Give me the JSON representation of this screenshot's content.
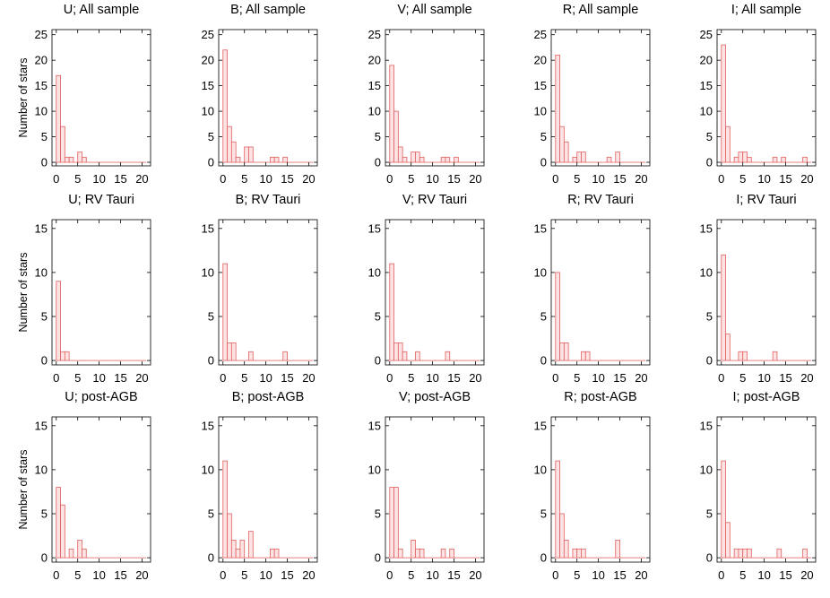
{
  "figure": {
    "ylabel": "Number of stars",
    "bar_fill": "#fde3e3",
    "bar_stroke": "#e06060",
    "axis_color": "#000000"
  },
  "chart_data": [
    {
      "type": "bar",
      "title": "U; All sample",
      "bin_width": 1,
      "x_start": 0,
      "xlim": [
        -1,
        22
      ],
      "ylim": [
        -0.7,
        26
      ],
      "xticks": [
        0,
        5,
        10,
        15,
        20
      ],
      "yticks": [
        0,
        5,
        10,
        15,
        20,
        25
      ],
      "values": [
        17,
        7,
        1,
        1,
        0,
        2,
        1,
        0,
        0,
        0,
        0,
        0,
        0,
        0,
        0,
        0,
        0,
        0,
        0,
        0,
        0
      ]
    },
    {
      "type": "bar",
      "title": "B; All sample",
      "bin_width": 1,
      "x_start": 0,
      "xlim": [
        -1,
        22
      ],
      "ylim": [
        -0.7,
        26
      ],
      "xticks": [
        0,
        5,
        10,
        15,
        20
      ],
      "yticks": [
        0,
        5,
        10,
        15,
        20,
        25
      ],
      "values": [
        22,
        7,
        4,
        1,
        0,
        3,
        3,
        0,
        0,
        0,
        0,
        1,
        1,
        0,
        1,
        0,
        0,
        0,
        0,
        0,
        0
      ]
    },
    {
      "type": "bar",
      "title": "V; All sample",
      "bin_width": 1,
      "x_start": 0,
      "xlim": [
        -1,
        22
      ],
      "ylim": [
        -0.7,
        26
      ],
      "xticks": [
        0,
        5,
        10,
        15,
        20
      ],
      "yticks": [
        0,
        5,
        10,
        15,
        20,
        25
      ],
      "values": [
        19,
        10,
        3,
        1,
        0,
        2,
        2,
        1,
        0,
        0,
        0,
        0,
        1,
        1,
        0,
        1,
        0,
        0,
        0,
        0,
        0
      ]
    },
    {
      "type": "bar",
      "title": "R; All sample",
      "bin_width": 1,
      "x_start": 0,
      "xlim": [
        -1,
        22
      ],
      "ylim": [
        -0.7,
        26
      ],
      "xticks": [
        0,
        5,
        10,
        15,
        20
      ],
      "yticks": [
        0,
        5,
        10,
        15,
        20,
        25
      ],
      "values": [
        21,
        7,
        4,
        0,
        1,
        2,
        2,
        0,
        0,
        0,
        0,
        0,
        1,
        0,
        2,
        0,
        0,
        0,
        0,
        0,
        0
      ]
    },
    {
      "type": "bar",
      "title": "I; All sample",
      "bin_width": 1,
      "x_start": 0,
      "xlim": [
        -1,
        22
      ],
      "ylim": [
        -0.7,
        26
      ],
      "xticks": [
        0,
        5,
        10,
        15,
        20
      ],
      "yticks": [
        0,
        5,
        10,
        15,
        20,
        25
      ],
      "values": [
        23,
        7,
        0,
        1,
        2,
        2,
        1,
        0,
        0,
        0,
        0,
        0,
        1,
        0,
        1,
        0,
        0,
        0,
        0,
        1,
        0
      ]
    },
    {
      "type": "bar",
      "title": "U; RV Tauri",
      "bin_width": 1,
      "x_start": 0,
      "xlim": [
        -1,
        22
      ],
      "ylim": [
        -0.5,
        16
      ],
      "xticks": [
        0,
        5,
        10,
        15,
        20
      ],
      "yticks": [
        0,
        5,
        10,
        15
      ],
      "values": [
        9,
        1,
        1,
        0,
        0,
        0,
        0,
        0,
        0,
        0,
        0,
        0,
        0,
        0,
        0,
        0,
        0,
        0,
        0,
        0,
        0
      ]
    },
    {
      "type": "bar",
      "title": "B; RV Tauri",
      "bin_width": 1,
      "x_start": 0,
      "xlim": [
        -1,
        22
      ],
      "ylim": [
        -0.5,
        16
      ],
      "xticks": [
        0,
        5,
        10,
        15,
        20
      ],
      "yticks": [
        0,
        5,
        10,
        15
      ],
      "values": [
        11,
        2,
        2,
        0,
        0,
        0,
        1,
        0,
        0,
        0,
        0,
        0,
        0,
        0,
        1,
        0,
        0,
        0,
        0,
        0,
        0
      ]
    },
    {
      "type": "bar",
      "title": "V; RV Tauri",
      "bin_width": 1,
      "x_start": 0,
      "xlim": [
        -1,
        22
      ],
      "ylim": [
        -0.5,
        16
      ],
      "xticks": [
        0,
        5,
        10,
        15,
        20
      ],
      "yticks": [
        0,
        5,
        10,
        15
      ],
      "values": [
        11,
        2,
        2,
        1,
        0,
        0,
        1,
        0,
        0,
        0,
        0,
        0,
        0,
        1,
        0,
        0,
        0,
        0,
        0,
        0,
        0
      ]
    },
    {
      "type": "bar",
      "title": "R; RV Tauri",
      "bin_width": 1,
      "x_start": 0,
      "xlim": [
        -1,
        22
      ],
      "ylim": [
        -0.5,
        16
      ],
      "xticks": [
        0,
        5,
        10,
        15,
        20
      ],
      "yticks": [
        0,
        5,
        10,
        15
      ],
      "values": [
        10,
        2,
        2,
        0,
        0,
        0,
        1,
        1,
        0,
        0,
        0,
        0,
        0,
        0,
        0,
        0,
        0,
        0,
        0,
        0,
        0
      ]
    },
    {
      "type": "bar",
      "title": "I; RV Tauri",
      "bin_width": 1,
      "x_start": 0,
      "xlim": [
        -1,
        22
      ],
      "ylim": [
        -0.5,
        16
      ],
      "xticks": [
        0,
        5,
        10,
        15,
        20
      ],
      "yticks": [
        0,
        5,
        10,
        15
      ],
      "values": [
        12,
        3,
        0,
        0,
        1,
        1,
        0,
        0,
        0,
        0,
        0,
        0,
        1,
        0,
        0,
        0,
        0,
        0,
        0,
        0,
        0
      ]
    },
    {
      "type": "bar",
      "title": "U; post-AGB",
      "bin_width": 1,
      "x_start": 0,
      "xlim": [
        -1,
        22
      ],
      "ylim": [
        -0.5,
        16
      ],
      "xticks": [
        0,
        5,
        10,
        15,
        20
      ],
      "yticks": [
        0,
        5,
        10,
        15
      ],
      "values": [
        8,
        6,
        0,
        1,
        0,
        2,
        1,
        0,
        0,
        0,
        0,
        0,
        0,
        0,
        0,
        0,
        0,
        0,
        0,
        0,
        0
      ]
    },
    {
      "type": "bar",
      "title": "B; post-AGB",
      "bin_width": 1,
      "x_start": 0,
      "xlim": [
        -1,
        22
      ],
      "ylim": [
        -0.5,
        16
      ],
      "xticks": [
        0,
        5,
        10,
        15,
        20
      ],
      "yticks": [
        0,
        5,
        10,
        15
      ],
      "values": [
        11,
        5,
        2,
        1,
        2,
        0,
        3,
        0,
        0,
        0,
        0,
        1,
        1,
        0,
        0,
        0,
        0,
        0,
        0,
        0,
        0
      ]
    },
    {
      "type": "bar",
      "title": "V; post-AGB",
      "bin_width": 1,
      "x_start": 0,
      "xlim": [
        -1,
        22
      ],
      "ylim": [
        -0.5,
        16
      ],
      "xticks": [
        0,
        5,
        10,
        15,
        20
      ],
      "yticks": [
        0,
        5,
        10,
        15
      ],
      "values": [
        8,
        8,
        1,
        0,
        0,
        2,
        1,
        1,
        0,
        0,
        0,
        0,
        1,
        0,
        1,
        0,
        0,
        0,
        0,
        0,
        0
      ]
    },
    {
      "type": "bar",
      "title": "R; post-AGB",
      "bin_width": 1,
      "x_start": 0,
      "xlim": [
        -1,
        22
      ],
      "ylim": [
        -0.5,
        16
      ],
      "xticks": [
        0,
        5,
        10,
        15,
        20
      ],
      "yticks": [
        0,
        5,
        10,
        15
      ],
      "values": [
        11,
        5,
        2,
        0,
        1,
        1,
        1,
        0,
        0,
        0,
        0,
        0,
        0,
        0,
        2,
        0,
        0,
        0,
        0,
        0,
        0
      ]
    },
    {
      "type": "bar",
      "title": "I; post-AGB",
      "bin_width": 1,
      "x_start": 0,
      "xlim": [
        -1,
        22
      ],
      "ylim": [
        -0.5,
        16
      ],
      "xticks": [
        0,
        5,
        10,
        15,
        20
      ],
      "yticks": [
        0,
        5,
        10,
        15
      ],
      "values": [
        11,
        4,
        0,
        1,
        1,
        1,
        1,
        0,
        0,
        0,
        0,
        0,
        0,
        1,
        0,
        0,
        0,
        0,
        0,
        1,
        0
      ]
    }
  ]
}
